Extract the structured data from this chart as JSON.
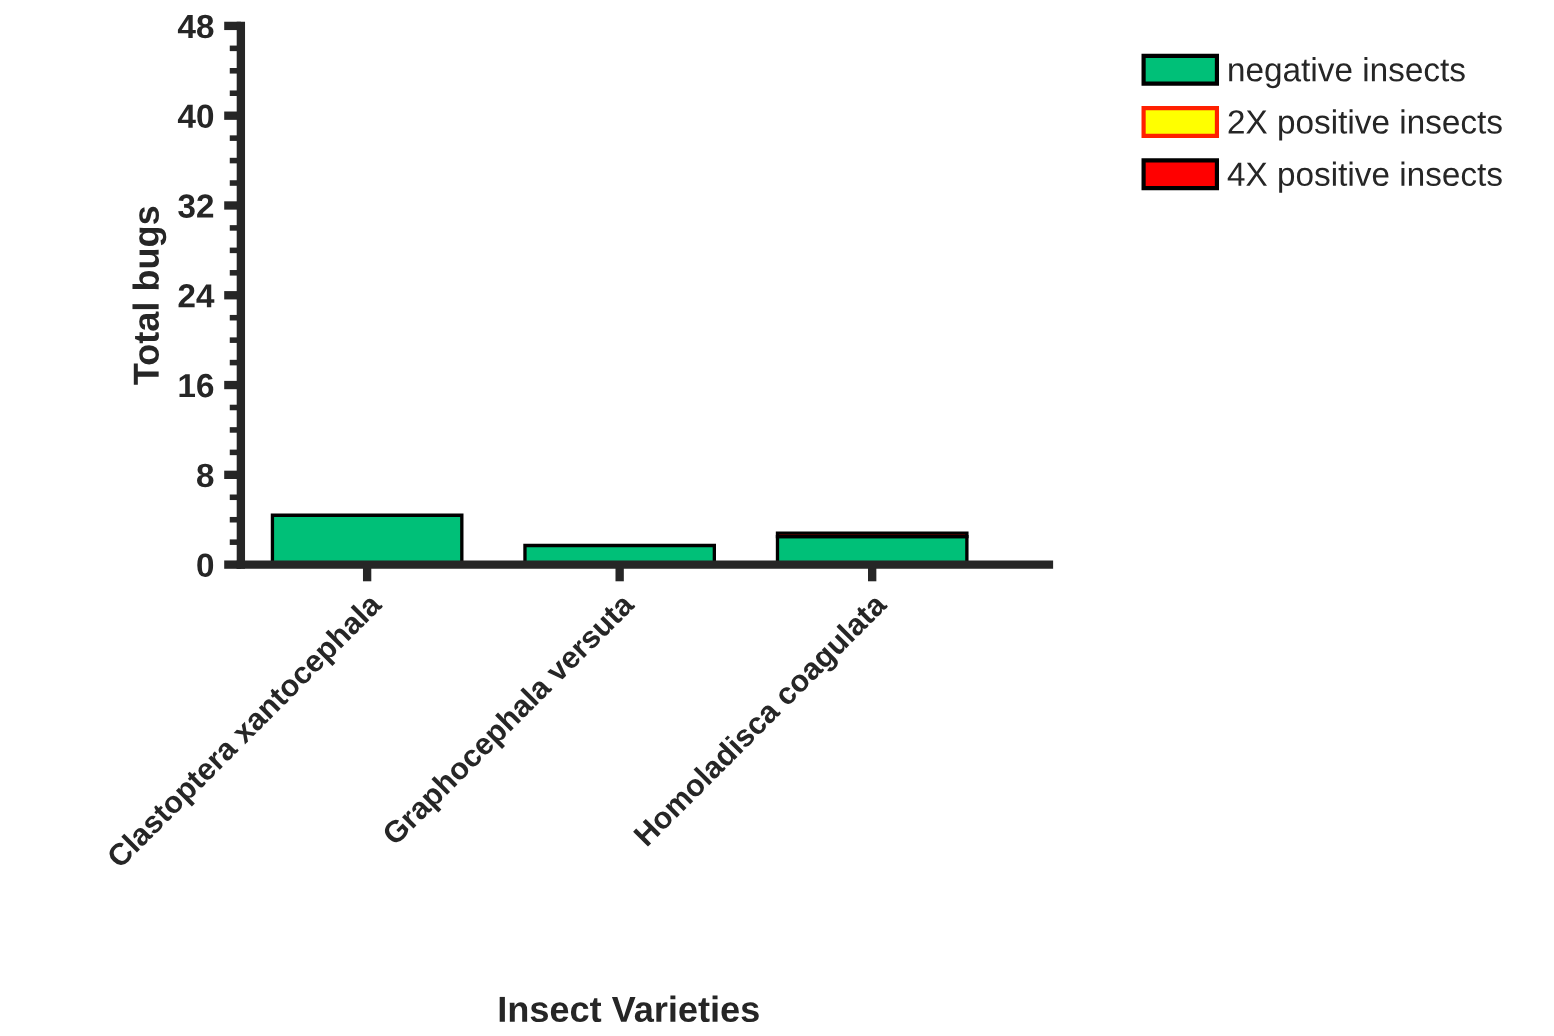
{
  "chart_data": {
    "type": "bar",
    "stacked": true,
    "xlabel": "Insect Varieties",
    "ylabel": "Total bugs",
    "categories": [
      "Clastoptera xantocephala",
      "Graphocephala versuta",
      "Homoladisca coagulata"
    ],
    "series": [
      {
        "name": "negative insects",
        "color": "#00c078",
        "values": [
          4.4,
          1.7,
          2.5
        ]
      },
      {
        "name": "2X positive insects",
        "color": "#ffff00",
        "values": [
          null,
          null,
          null
        ]
      },
      {
        "name": "4X positive insects",
        "color": "#ff0000",
        "values": [
          null,
          null,
          0.3
        ]
      }
    ],
    "ylim": [
      0,
      48
    ],
    "yticks": [
      0,
      8,
      16,
      24,
      32,
      40,
      48
    ],
    "grid": false,
    "legend": "top right"
  }
}
